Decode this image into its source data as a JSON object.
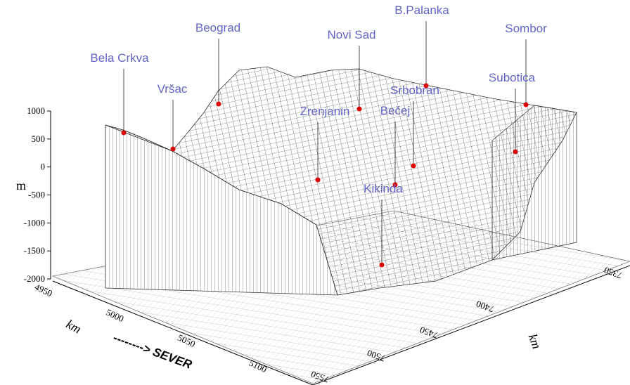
{
  "chart_data": {
    "type": "surface",
    "zlabel": "m",
    "xlabel": "km",
    "direction_label": "--------> SEVER",
    "ylabel": "km",
    "zlim": [
      -2000,
      1000
    ],
    "zticks": [
      1000,
      500,
      0,
      -500,
      -1000,
      -1500,
      -2000
    ],
    "xticks": [
      4950,
      5000,
      5050,
      5100
    ],
    "yticks": [
      7350,
      7400,
      7450,
      7500,
      7550
    ],
    "marker_color": "#e00000",
    "annotations": [
      "Bela Crkva",
      "Vršac",
      "Beograd",
      "Novi Sad",
      "B.Palanka",
      "Sombor",
      "Subotica",
      "Srbobran",
      "Zrenjanin",
      "Bečej",
      "Kikinda"
    ]
  }
}
